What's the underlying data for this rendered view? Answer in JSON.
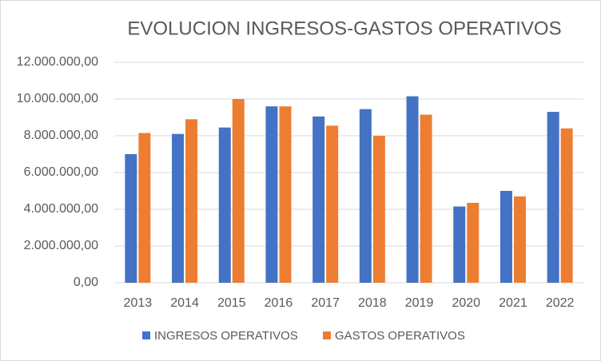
{
  "chart_data": {
    "type": "bar",
    "title": "EVOLUCION INGRESOS-GASTOS OPERATIVOS",
    "categories": [
      "2013",
      "2014",
      "2015",
      "2016",
      "2017",
      "2018",
      "2019",
      "2020",
      "2021",
      "2022"
    ],
    "series": [
      {
        "name": "INGRESOS OPERATIVOS",
        "color": "#4472c4",
        "values": [
          7000000,
          8100000,
          8450000,
          9600000,
          9050000,
          9450000,
          10150000,
          4150000,
          5000000,
          9300000
        ]
      },
      {
        "name": "GASTOS OPERATIVOS",
        "color": "#ed7d31",
        "values": [
          8150000,
          8900000,
          10000000,
          9600000,
          8550000,
          8000000,
          9150000,
          4350000,
          4700000,
          8400000
        ]
      }
    ],
    "ylim": [
      0,
      12000000
    ],
    "yticks": [
      {
        "value": 0,
        "label": "0,00"
      },
      {
        "value": 2000000,
        "label": "2.000.000,00"
      },
      {
        "value": 4000000,
        "label": "4.000.000,00"
      },
      {
        "value": 6000000,
        "label": "6.000.000,00"
      },
      {
        "value": 8000000,
        "label": "8.000.000,00"
      },
      {
        "value": 10000000,
        "label": "10.000.000,00"
      },
      {
        "value": 12000000,
        "label": "12.000.000,00"
      }
    ],
    "grid": true,
    "legend": "bottom"
  }
}
